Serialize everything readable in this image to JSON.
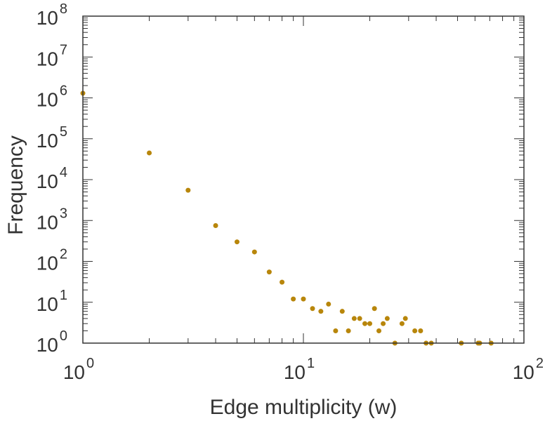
{
  "chart_data": {
    "type": "scatter",
    "title": "",
    "xlabel": "Edge multiplicity (w)",
    "ylabel": "Frequency",
    "xscale": "log",
    "yscale": "log",
    "xlim": [
      1,
      100
    ],
    "ylim": [
      1,
      100000000
    ],
    "grid": false,
    "legend": "none",
    "marker_color": "#b8860b",
    "x_ticks": [
      {
        "base": "10",
        "exp": "0",
        "value": 1
      },
      {
        "base": "10",
        "exp": "1",
        "value": 10
      },
      {
        "base": "10",
        "exp": "2",
        "value": 100
      }
    ],
    "y_ticks": [
      {
        "base": "10",
        "exp": "0",
        "value": 1
      },
      {
        "base": "10",
        "exp": "1",
        "value": 10
      },
      {
        "base": "10",
        "exp": "2",
        "value": 100
      },
      {
        "base": "10",
        "exp": "3",
        "value": 1000
      },
      {
        "base": "10",
        "exp": "4",
        "value": 10000
      },
      {
        "base": "10",
        "exp": "5",
        "value": 100000
      },
      {
        "base": "10",
        "exp": "6",
        "value": 1000000
      },
      {
        "base": "10",
        "exp": "7",
        "value": 10000000
      },
      {
        "base": "10",
        "exp": "8",
        "value": 100000000
      }
    ],
    "series": [
      {
        "points": [
          [
            1,
            1300000
          ],
          [
            2,
            45000
          ],
          [
            3,
            5500
          ],
          [
            4,
            750
          ],
          [
            5,
            300
          ],
          [
            6,
            170
          ],
          [
            7,
            55
          ],
          [
            8,
            31
          ],
          [
            9,
            12
          ],
          [
            10,
            12
          ],
          [
            11,
            7
          ],
          [
            12,
            6
          ],
          [
            13,
            9
          ],
          [
            14,
            2
          ],
          [
            15,
            6
          ],
          [
            16,
            2
          ],
          [
            17,
            4
          ],
          [
            18,
            4
          ],
          [
            19,
            3
          ],
          [
            20,
            3
          ],
          [
            21,
            7
          ],
          [
            22,
            2
          ],
          [
            23,
            3
          ],
          [
            24,
            4
          ],
          [
            26,
            1
          ],
          [
            28,
            3
          ],
          [
            29,
            4
          ],
          [
            32,
            2
          ],
          [
            34,
            2
          ],
          [
            36,
            1
          ],
          [
            38,
            1
          ],
          [
            52,
            1
          ],
          [
            62,
            1
          ],
          [
            63,
            1
          ],
          [
            71,
            1
          ]
        ]
      }
    ]
  }
}
